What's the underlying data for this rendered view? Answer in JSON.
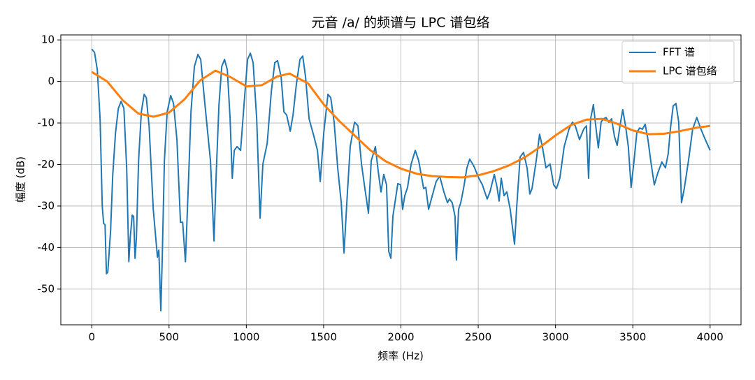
{
  "chart_data": {
    "type": "line",
    "title": "元音 /a/ 的频谱与 LPC 谱包络",
    "xlabel": "频率 (Hz)",
    "ylabel": "幅度 (dB)",
    "xlim": [
      -200,
      4200
    ],
    "xticks": [
      0,
      500,
      1000,
      1500,
      2000,
      2500,
      3000,
      3500,
      4000
    ],
    "ylim": [
      -58.6,
      11.2
    ],
    "yticks": [
      -50,
      -40,
      -30,
      -20,
      -10,
      0,
      10
    ],
    "grid": true,
    "legend": "upper right",
    "series": [
      {
        "name": "FFT 谱",
        "color": "#1f77b4",
        "x": [
          0,
          18,
          36,
          54,
          68,
          77,
          86,
          95,
          104,
          122,
          136,
          154,
          172,
          190,
          208,
          226,
          240,
          249,
          262,
          271,
          280,
          289,
          303,
          321,
          339,
          353,
          371,
          398,
          425,
          434,
          447,
          456,
          470,
          488,
          511,
          529,
          551,
          574,
          588,
          606,
          624,
          642,
          664,
          687,
          705,
          728,
          750,
          768,
          791,
          805,
          823,
          841,
          859,
          877,
          895,
          909,
          922,
          940,
          963,
          985,
          1008,
          1026,
          1044,
          1067,
          1089,
          1107,
          1135,
          1162,
          1184,
          1202,
          1225,
          1243,
          1261,
          1284,
          1302,
          1324,
          1347,
          1365,
          1383,
          1406,
          1437,
          1460,
          1478,
          1501,
          1528,
          1546,
          1568,
          1591,
          1614,
          1632,
          1650,
          1672,
          1700,
          1722,
          1745,
          1767,
          1790,
          1808,
          1835,
          1853,
          1871,
          1889,
          1907,
          1921,
          1935,
          1948,
          1980,
          1998,
          2011,
          2025,
          2043,
          2066,
          2093,
          2115,
          2147,
          2161,
          2179,
          2197,
          2228,
          2251,
          2278,
          2301,
          2314,
          2332,
          2350,
          2359,
          2373,
          2387,
          2405,
          2427,
          2445,
          2472,
          2504,
          2527,
          2558,
          2576,
          2604,
          2622,
          2635,
          2649,
          2667,
          2685,
          2707,
          2735,
          2748,
          2771,
          2793,
          2816,
          2834,
          2848,
          2875,
          2897,
          2915,
          2938,
          2965,
          2988,
          3006,
          3028,
          3056,
          3087,
          3110,
          3128,
          3155,
          3182,
          3200,
          3214,
          3227,
          3245,
          3259,
          3277,
          3295,
          3309,
          3327,
          3345,
          3363,
          3381,
          3399,
          3417,
          3435,
          3453,
          3471,
          3489,
          3508,
          3526,
          3544,
          3562,
          3580,
          3598,
          3616,
          3639,
          3661,
          3688,
          3711,
          3729,
          3743,
          3761,
          3779,
          3797,
          3815,
          3833,
          3860,
          3887,
          3914,
          3941,
          3969,
          4000
        ],
        "values": [
          7.8,
          7.0,
          2.8,
          -9.0,
          -30.0,
          -34.2,
          -34.5,
          -46.3,
          -45.9,
          -35.9,
          -22.4,
          -12.3,
          -6.5,
          -4.8,
          -6.5,
          -20.8,
          -43.4,
          -37.6,
          -32.2,
          -32.5,
          -42.6,
          -37.6,
          -19.1,
          -7.3,
          -3.1,
          -3.9,
          -10.7,
          -30.8,
          -42.3,
          -40.6,
          -55.2,
          -42.6,
          -19.1,
          -7.3,
          -3.4,
          -5.3,
          -14.0,
          -33.9,
          -33.9,
          -43.4,
          -25.8,
          -7.3,
          3.6,
          6.5,
          5.3,
          -3.9,
          -12.3,
          -19.1,
          -38.4,
          -22.4,
          -5.6,
          3.6,
          5.3,
          2.8,
          -9.0,
          -23.3,
          -16.6,
          -15.7,
          -16.6,
          -5.6,
          5.3,
          6.8,
          4.5,
          -9.0,
          -32.9,
          -19.9,
          -14.9,
          -2.3,
          4.5,
          5.0,
          1.1,
          -7.3,
          -8.1,
          -12.0,
          -8.1,
          -0.6,
          5.3,
          6.1,
          1.1,
          -9.0,
          -13.2,
          -16.6,
          -24.1,
          -12.3,
          -3.1,
          -3.9,
          -9.8,
          -20.8,
          -29.2,
          -41.3,
          -29.2,
          -15.7,
          -9.8,
          -10.7,
          -19.9,
          -25.8,
          -31.7,
          -19.1,
          -15.7,
          -21.6,
          -26.6,
          -22.4,
          -24.9,
          -40.9,
          -42.6,
          -32.5,
          -24.6,
          -24.9,
          -30.8,
          -27.5,
          -25.5,
          -19.9,
          -16.6,
          -19.1,
          -25.8,
          -25.5,
          -30.8,
          -28.3,
          -24.1,
          -22.8,
          -26.6,
          -29.2,
          -28.3,
          -29.2,
          -32.5,
          -43.0,
          -30.8,
          -29.2,
          -25.8,
          -20.8,
          -18.7,
          -20.4,
          -23.3,
          -24.9,
          -28.3,
          -26.6,
          -22.4,
          -25.5,
          -28.8,
          -23.3,
          -27.5,
          -26.6,
          -30.8,
          -39.2,
          -30.8,
          -18.2,
          -17.1,
          -20.8,
          -27.1,
          -25.8,
          -19.1,
          -12.7,
          -15.7,
          -20.8,
          -19.9,
          -24.9,
          -25.8,
          -23.3,
          -15.7,
          -11.5,
          -9.8,
          -10.7,
          -14.0,
          -11.5,
          -10.7,
          -23.3,
          -9.0,
          -5.6,
          -10.3,
          -16.0,
          -9.8,
          -9.0,
          -8.7,
          -9.8,
          -9.0,
          -13.2,
          -15.4,
          -10.7,
          -6.8,
          -10.7,
          -15.7,
          -25.5,
          -19.1,
          -12.3,
          -11.2,
          -11.5,
          -10.3,
          -14.0,
          -19.1,
          -24.9,
          -22.1,
          -19.4,
          -20.8,
          -17.4,
          -11.5,
          -5.9,
          -5.3,
          -9.8,
          -29.2,
          -25.8,
          -19.1,
          -11.5,
          -8.7,
          -11.5,
          -14.0,
          -16.6
        ]
      },
      {
        "name": "LPC 谱包络",
        "color": "#ff7f0e",
        "x": [
          0,
          100,
          200,
          300,
          400,
          500,
          600,
          700,
          800,
          900,
          1000,
          1100,
          1200,
          1280,
          1400,
          1500,
          1600,
          1700,
          1800,
          1900,
          2000,
          2100,
          2200,
          2300,
          2400,
          2500,
          2600,
          2700,
          2800,
          2900,
          3000,
          3100,
          3200,
          3300,
          3400,
          3500,
          3600,
          3700,
          3800,
          3900,
          4000
        ],
        "values": [
          2.3,
          0,
          -4.5,
          -7.7,
          -8.5,
          -7.5,
          -4.3,
          0.2,
          2.6,
          1.0,
          -1.2,
          -0.9,
          1.2,
          1.9,
          -0.5,
          -5.5,
          -9.5,
          -13,
          -16.5,
          -19.2,
          -21.0,
          -22.2,
          -22.8,
          -23.0,
          -23.1,
          -22.6,
          -21.6,
          -20.2,
          -18.3,
          -15.8,
          -13.0,
          -10.5,
          -9.2,
          -9.0,
          -10.2,
          -11.8,
          -12.7,
          -12.6,
          -12.0,
          -11.2,
          -10.7
        ]
      }
    ]
  }
}
